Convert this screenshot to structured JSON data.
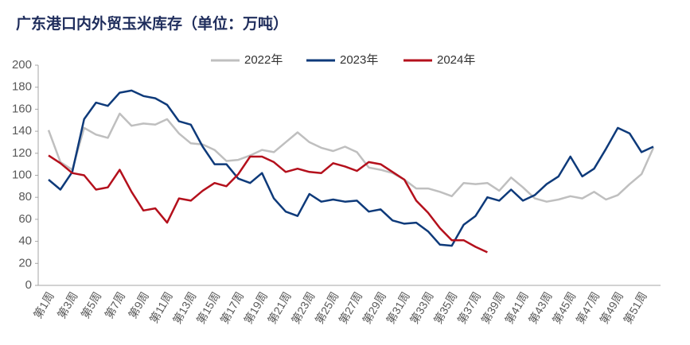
{
  "chart_data": {
    "type": "line",
    "title": "广东港口内外贸玉米库存（单位：万吨）",
    "categories": [
      "第1周",
      null,
      "第3周",
      null,
      "第5周",
      null,
      "第7周",
      null,
      "第9周",
      null,
      "第11周",
      null,
      "第13周",
      null,
      "第15周",
      null,
      "第17周",
      null,
      "第19周",
      null,
      "第21周",
      null,
      "第23周",
      null,
      "第25周",
      null,
      "第27周",
      null,
      "第29周",
      null,
      "第31周",
      null,
      "第33周",
      null,
      "第35周",
      null,
      "第37周",
      null,
      "第39周",
      null,
      "第41周",
      null,
      "第43周",
      null,
      "第45周",
      null,
      "第47周",
      null,
      "第49周",
      null,
      "第51周",
      null
    ],
    "series": [
      {
        "name": "2022年",
        "color": "#bfbfbf",
        "values": [
          141,
          112,
          105,
          143,
          137,
          134,
          156,
          145,
          147,
          146,
          151,
          138,
          129,
          128,
          123,
          113,
          114,
          118,
          123,
          121,
          130,
          139,
          130,
          125,
          122,
          126,
          121,
          107,
          105,
          102,
          96,
          88,
          88,
          85,
          81,
          93,
          92,
          93,
          86,
          98,
          89,
          79,
          76,
          78,
          81,
          79,
          85,
          78,
          82,
          92,
          101,
          125
        ]
      },
      {
        "name": "2023年",
        "color": "#0e3a7a",
        "values": [
          96,
          87,
          103,
          151,
          166,
          163,
          175,
          177,
          172,
          170,
          164,
          149,
          146,
          126,
          110,
          110,
          97,
          93,
          102,
          79,
          67,
          63,
          83,
          76,
          78,
          76,
          77,
          67,
          69,
          59,
          56,
          57,
          49,
          37,
          36,
          55,
          63,
          80,
          77,
          87,
          77,
          82,
          92,
          99,
          117,
          99,
          106,
          124,
          143,
          138,
          121,
          126
        ]
      },
      {
        "name": "2024年",
        "color": "#b4101c",
        "values": [
          118,
          111,
          102,
          100,
          87,
          89,
          105,
          85,
          68,
          70,
          57,
          79,
          77,
          86,
          93,
          90,
          101,
          117,
          117,
          112,
          103,
          106,
          103,
          102,
          111,
          108,
          104,
          112,
          110,
          103,
          96,
          77,
          66,
          52,
          41,
          41,
          35,
          30,
          null,
          null,
          null,
          null,
          null,
          null,
          null,
          null,
          null,
          null,
          null,
          null,
          null,
          null
        ]
      }
    ],
    "ylim": [
      0,
      200
    ],
    "yticks": [
      0,
      20,
      40,
      60,
      80,
      100,
      120,
      140,
      160,
      180,
      200
    ],
    "legend": "top"
  }
}
